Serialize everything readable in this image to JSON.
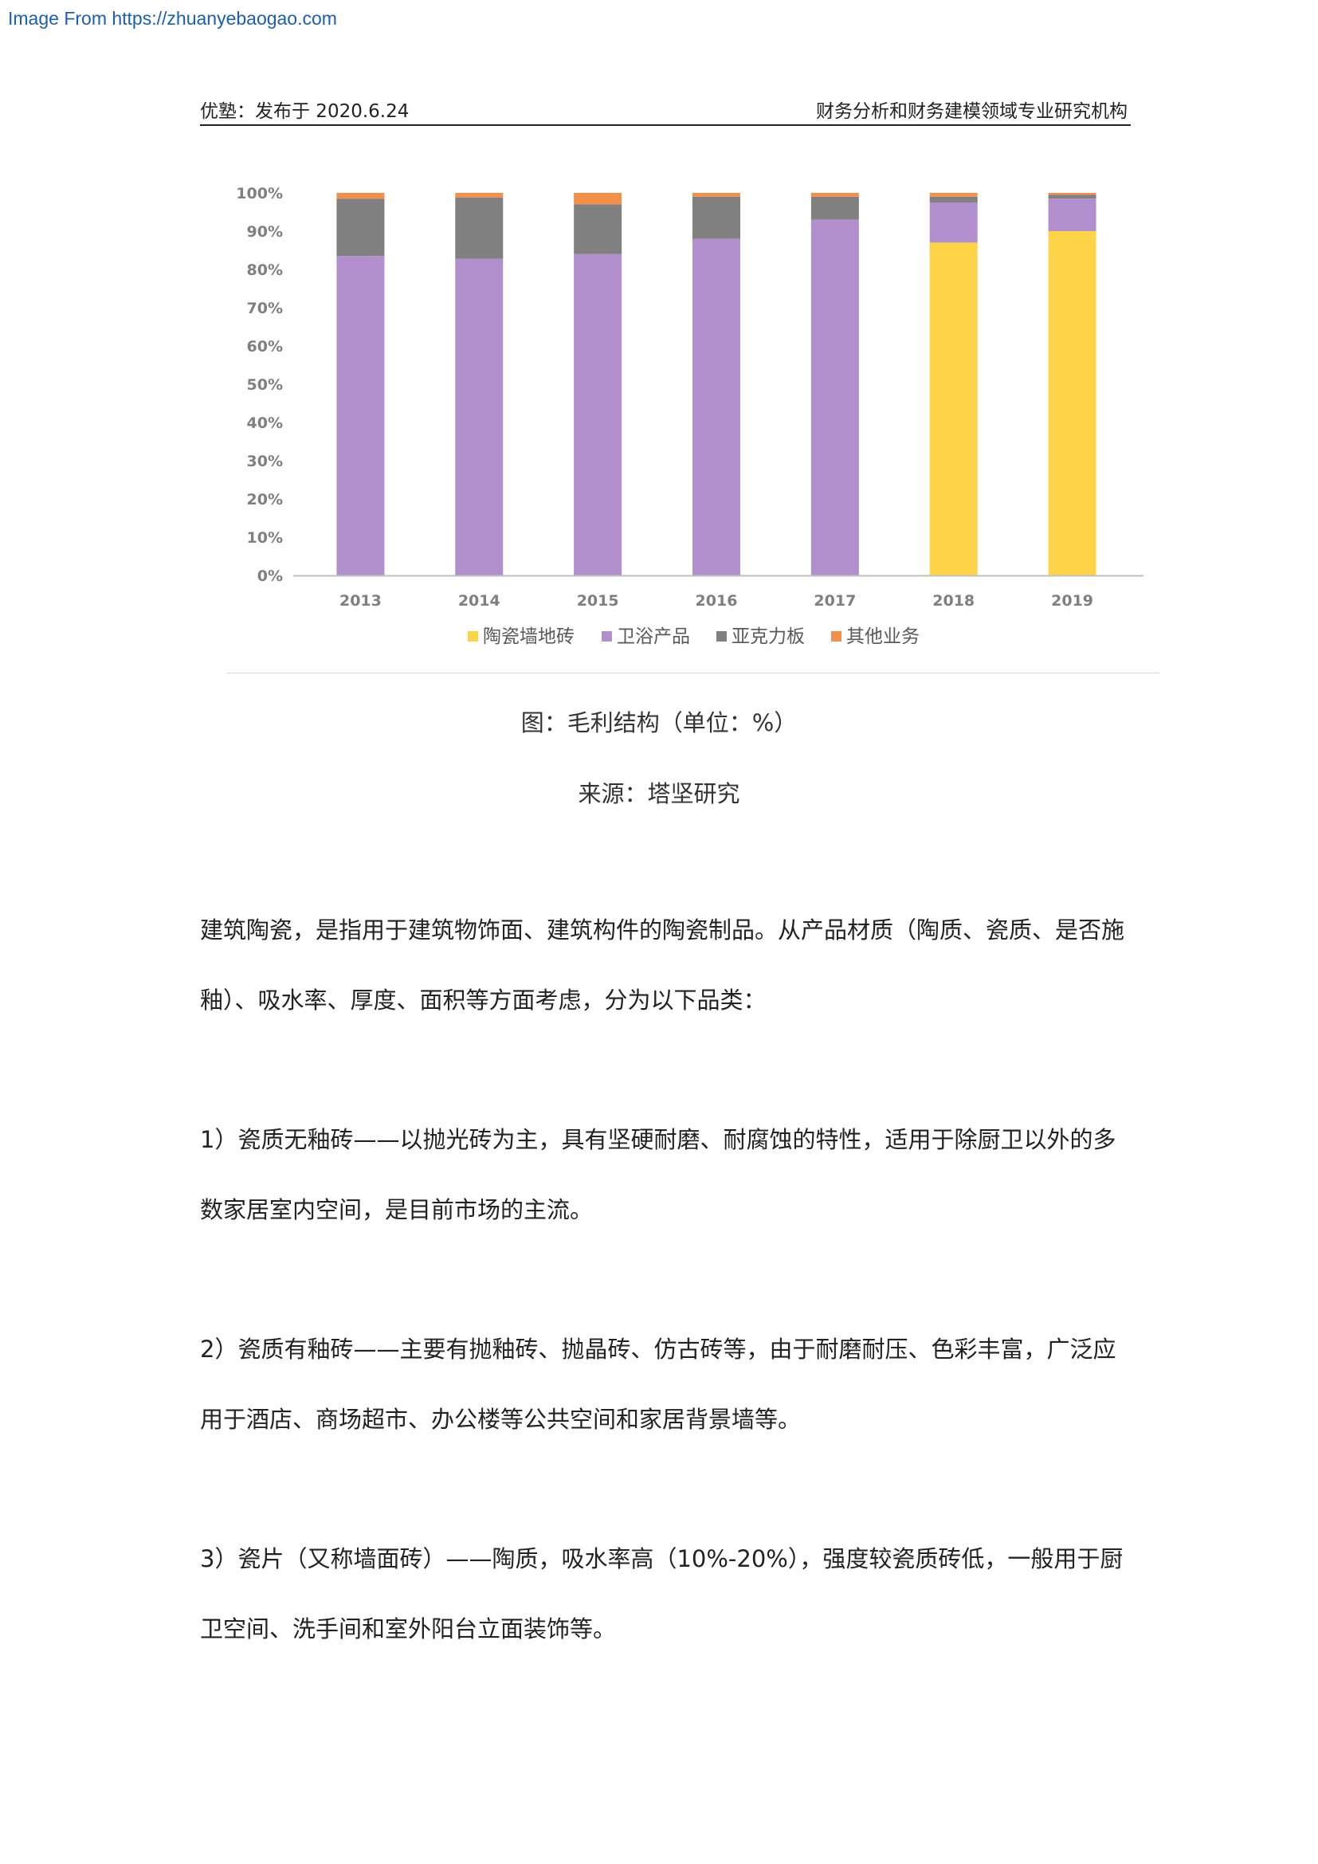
{
  "source_link": "Image From https://zhuanyebaogao.com",
  "header": {
    "left": "优塾：发布于 2020.6.24",
    "right": "财务分析和财务建模领域专业研究机构"
  },
  "chart_data": {
    "type": "bar",
    "stacked": true,
    "categories": [
      "2013",
      "2014",
      "2015",
      "2016",
      "2017",
      "2018",
      "2019"
    ],
    "y_ticks": [
      "0%",
      "10%",
      "20%",
      "30%",
      "40%",
      "50%",
      "60%",
      "70%",
      "80%",
      "90%",
      "100%"
    ],
    "ylim": [
      0,
      100
    ],
    "series": [
      {
        "name": "陶瓷墙地砖",
        "color": "#ffd347",
        "values": [
          0,
          0,
          0,
          0,
          0,
          87,
          90
        ]
      },
      {
        "name": "卫浴产品",
        "color": "#b18fcc",
        "values": [
          83.5,
          82.8,
          84,
          88,
          93,
          10.5,
          8.5
        ]
      },
      {
        "name": "亚克力板",
        "color": "#808080",
        "values": [
          15,
          16,
          13,
          11,
          6,
          1.5,
          1
        ]
      },
      {
        "name": "其他业务",
        "color": "#f2914a",
        "values": [
          1.5,
          1.2,
          3,
          1,
          1,
          1,
          0.5
        ]
      }
    ],
    "legend_position": "bottom",
    "grid": false
  },
  "caption": {
    "title": "图：毛利结构（单位：%）",
    "source": "来源：塔坚研究"
  },
  "paragraphs": [
    "建筑陶瓷，是指用于建筑物饰面、建筑构件的陶瓷制品。从产品材质（陶质、瓷质、是否施釉）、吸水率、厚度、面积等方面考虑，分为以下品类：",
    "1）瓷质无釉砖——以抛光砖为主，具有坚硬耐磨、耐腐蚀的特性，适用于除厨卫以外的多数家居室内空间，是目前市场的主流。",
    "2）瓷质有釉砖——主要有抛釉砖、抛晶砖、仿古砖等，由于耐磨耐压、色彩丰富，广泛应用于酒店、商场超市、办公楼等公共空间和家居背景墙等。",
    "3）瓷片（又称墙面砖）——陶质，吸水率高（10%-20%），强度较瓷质砖低，一般用于厨卫空间、洗手间和室外阳台立面装饰等。"
  ]
}
